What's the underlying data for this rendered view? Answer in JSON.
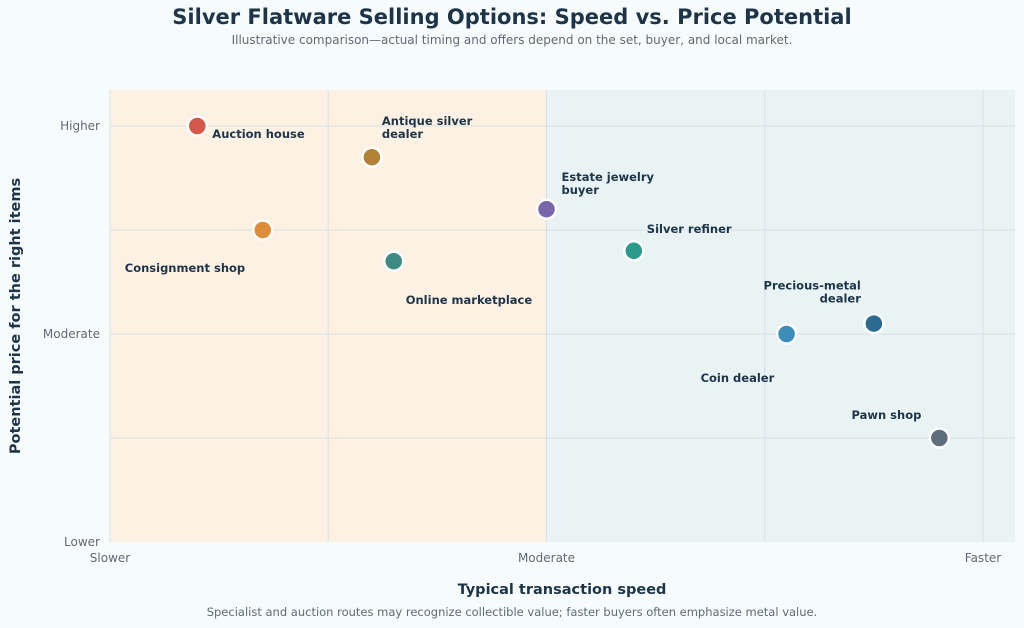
{
  "chart_data": {
    "type": "scatter",
    "title": "Silver Flatware Selling Options: Speed vs. Price Potential",
    "subtitle": "Illustrative comparison—actual timing and offers depend on the set, buyer, and local market.",
    "footnote": "Specialist and auction routes may recognize collectible value; faster buyers often emphasize metal value.",
    "xlabel": "Typical transaction speed",
    "ylabel": "Potential price for the right items",
    "xlim": [
      0,
      10
    ],
    "ylim": [
      0,
      10
    ],
    "x_ticks": [
      {
        "value": 0,
        "label": "Slower"
      },
      {
        "value": 5,
        "label": "Moderate"
      },
      {
        "value": 10,
        "label": "Faster"
      }
    ],
    "y_ticks": [
      {
        "value": 0,
        "label": "Lower"
      },
      {
        "value": 5,
        "label": "Moderate"
      },
      {
        "value": 10,
        "label": "Higher"
      }
    ],
    "grid": true,
    "regions": [
      {
        "x_range": [
          0,
          5
        ],
        "color": "#fdf1e4"
      },
      {
        "x_range": [
          5,
          10
        ],
        "color": "#e9f3f4"
      }
    ],
    "points": [
      {
        "name": "Auction house",
        "x": 1.0,
        "y": 10.0,
        "color": "#d4584a"
      },
      {
        "name": "Antique silver dealer",
        "x": 3.0,
        "y": 9.25,
        "color": "#b38235"
      },
      {
        "name": "Consignment shop",
        "x": 1.75,
        "y": 7.5,
        "color": "#de8e3a"
      },
      {
        "name": "Online marketplace",
        "x": 3.25,
        "y": 6.75,
        "color": "#3c8a82"
      },
      {
        "name": "Estate jewelry buyer",
        "x": 5.0,
        "y": 8.0,
        "color": "#7a67ab"
      },
      {
        "name": "Silver refiner",
        "x": 6.0,
        "y": 7.0,
        "color": "#2b9a8a"
      },
      {
        "name": "Coin dealer",
        "x": 7.75,
        "y": 5.0,
        "color": "#3c8db9"
      },
      {
        "name": "Precious-metal dealer",
        "x": 8.75,
        "y": 5.25,
        "color": "#2a6b8f"
      },
      {
        "name": "Pawn shop",
        "x": 9.5,
        "y": 2.5,
        "color": "#5e6e7c"
      }
    ]
  }
}
